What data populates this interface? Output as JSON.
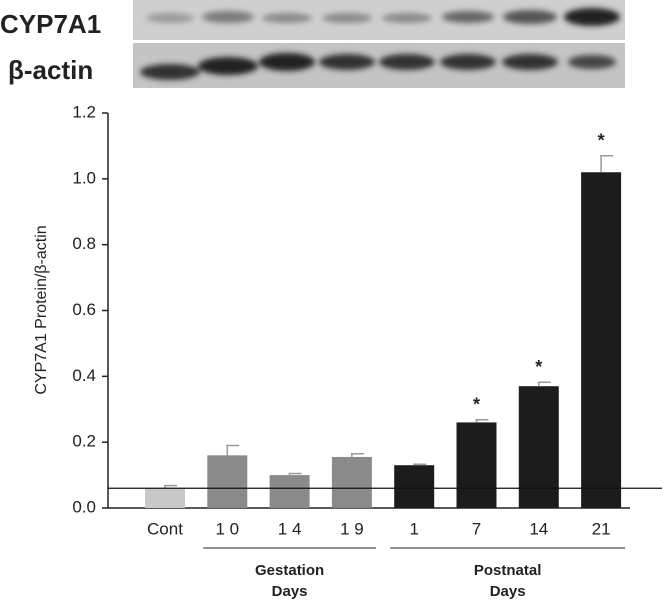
{
  "blot": {
    "labels": [
      "CYP7A1",
      "β-actin"
    ]
  },
  "chart_data": {
    "type": "bar",
    "y_label": "CYP7A1 Protein/β-actin",
    "categories": [
      "Cont",
      "1 0",
      "1 4",
      "1 9",
      "1",
      "7",
      "14",
      "21"
    ],
    "values": [
      0.06,
      0.16,
      0.1,
      0.155,
      0.13,
      0.26,
      0.37,
      1.02
    ],
    "errors": [
      0.008,
      0.03,
      0.005,
      0.01,
      0.003,
      0.008,
      0.012,
      0.05
    ],
    "colors": [
      "#c8c8c8",
      "#8a8a8a",
      "#8a8a8a",
      "#8a8a8a",
      "#1c1c1c",
      "#1c1c1c",
      "#1c1c1c",
      "#1c1c1c"
    ],
    "significance": [
      null,
      null,
      null,
      null,
      null,
      "*",
      "*",
      "*"
    ],
    "reference_line": 0.06,
    "groups": [
      {
        "lines": [
          "Gestation",
          "Days"
        ],
        "from": 1,
        "to": 3
      },
      {
        "lines": [
          "Postnatal",
          "Days"
        ],
        "from": 4,
        "to": 7
      }
    ],
    "ylim": [
      0,
      1.2
    ],
    "yticks": [
      {
        "value": 0,
        "label": "0.0"
      },
      0.2,
      0.4,
      0.6,
      0.8,
      {
        "value": 1,
        "label": "1.0"
      },
      1.2
    ]
  }
}
